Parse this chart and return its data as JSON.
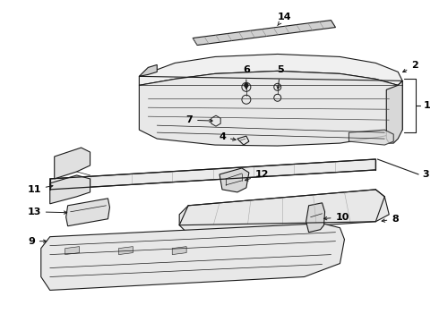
{
  "background_color": "#ffffff",
  "line_color": "#1a1a1a",
  "label_color": "#000000",
  "figsize": [
    4.9,
    3.6
  ],
  "dpi": 100
}
